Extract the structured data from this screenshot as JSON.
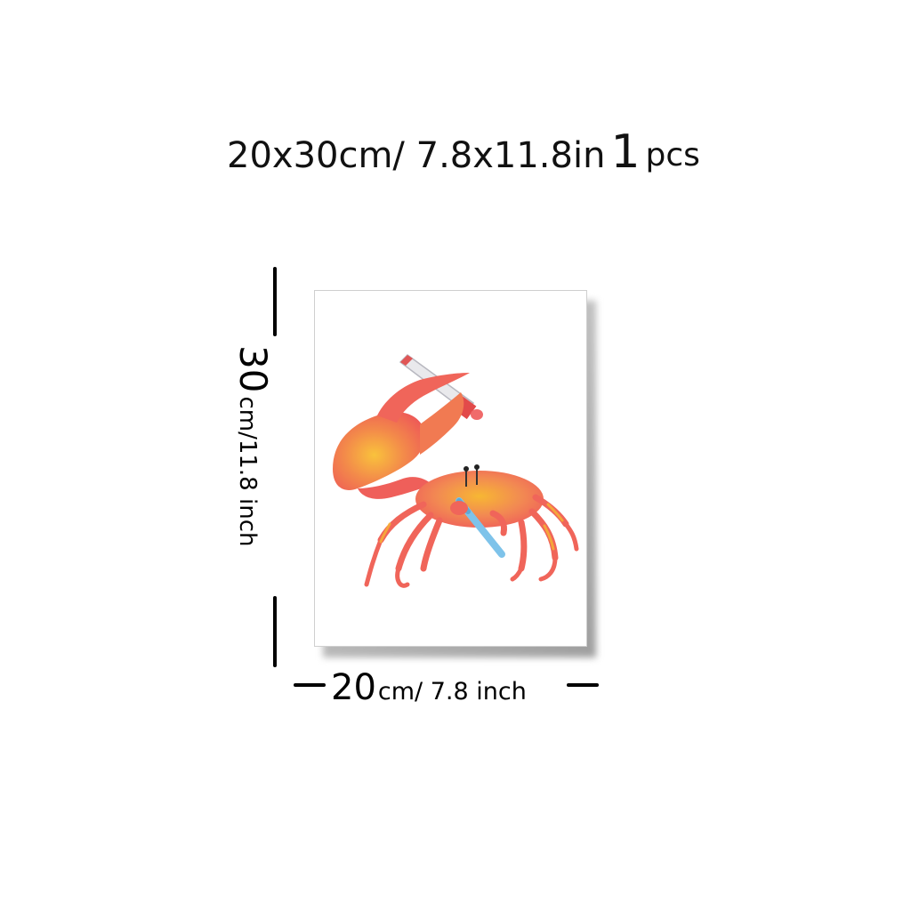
{
  "headline": {
    "dimensions": "20x30cm/ 7.8x11.8in",
    "count": "1",
    "unit": "pcs"
  },
  "height_label": {
    "value": "30",
    "unit": "cm/11.8 inch"
  },
  "width_label": {
    "value": "20",
    "unit": "cm/ 7.8 inch"
  },
  "artwork": {
    "subject": "crab-brushing-teeth-illustration",
    "colors": {
      "crab_primary": "#f0655a",
      "crab_highlight": "#f7b733",
      "toothbrush": "#7ec3ea",
      "toothpaste_tube": "#e9e9ec",
      "tube_cap": "#e24a4a"
    }
  }
}
